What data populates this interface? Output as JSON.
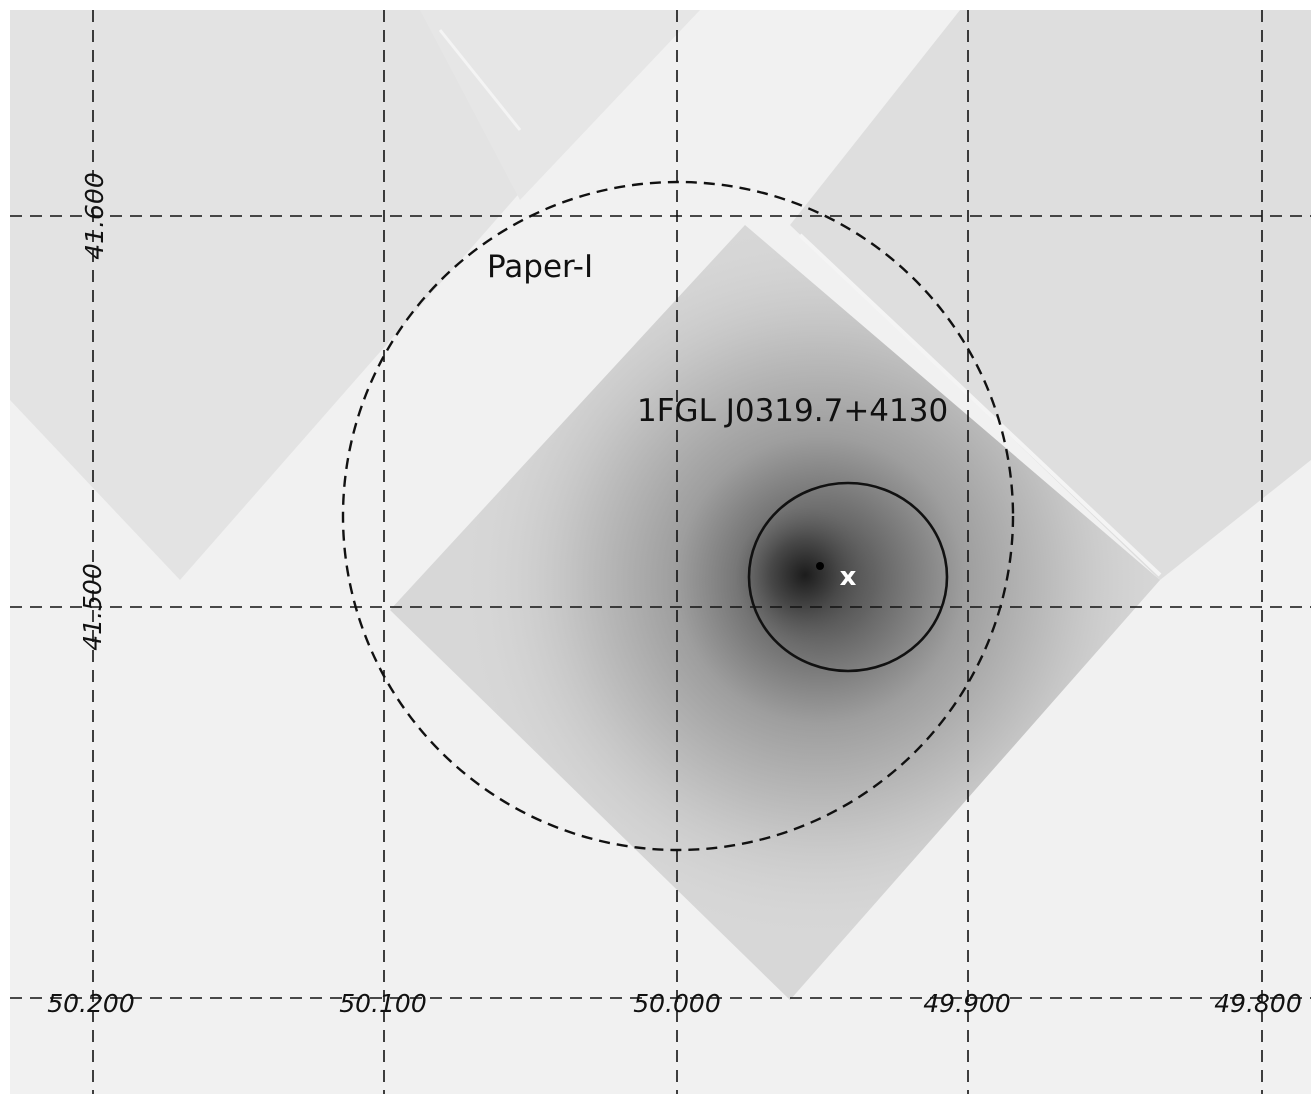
{
  "image": {
    "background_color": "#f1f1f1",
    "exposure_color": "#d7d7d7",
    "source_color": "#3a3a3a"
  },
  "axes": {
    "ra_ticks": [
      "50.200",
      "50.100",
      "50.000",
      "49.900",
      "49.800"
    ],
    "dec_ticks": [
      "41.600",
      "41.500"
    ]
  },
  "annotations": {
    "outer_region_label": "Paper-I",
    "source_label": "1FGL J0319.7+4130",
    "marker": "x"
  }
}
